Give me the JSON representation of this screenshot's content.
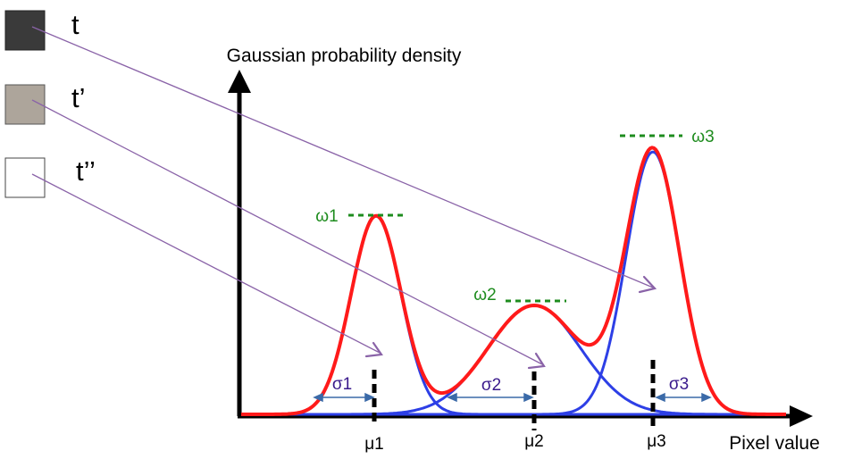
{
  "title": "Gaussian probability density",
  "x_axis_label": "Pixel value",
  "pixels": [
    {
      "label": "t",
      "color": "#3a3a3a"
    },
    {
      "label": "t’",
      "color": "#ada59b"
    },
    {
      "label": "t’’",
      "color": "#ffffff"
    }
  ],
  "components": [
    {
      "mean_label": "μ1",
      "sigma_label": "σ1",
      "weight_label": "ω1"
    },
    {
      "mean_label": "μ2",
      "sigma_label": "σ2",
      "weight_label": "ω2"
    },
    {
      "mean_label": "μ3",
      "sigma_label": "σ3",
      "weight_label": "ω3"
    }
  ],
  "colors": {
    "mixture": "#ff1a1a",
    "component": "#2d3fe6",
    "weight_marker": "#1e8c1e",
    "sigma_text": "#3a1a8c",
    "arrow": "#8a63a8",
    "axis": "#000000"
  }
}
